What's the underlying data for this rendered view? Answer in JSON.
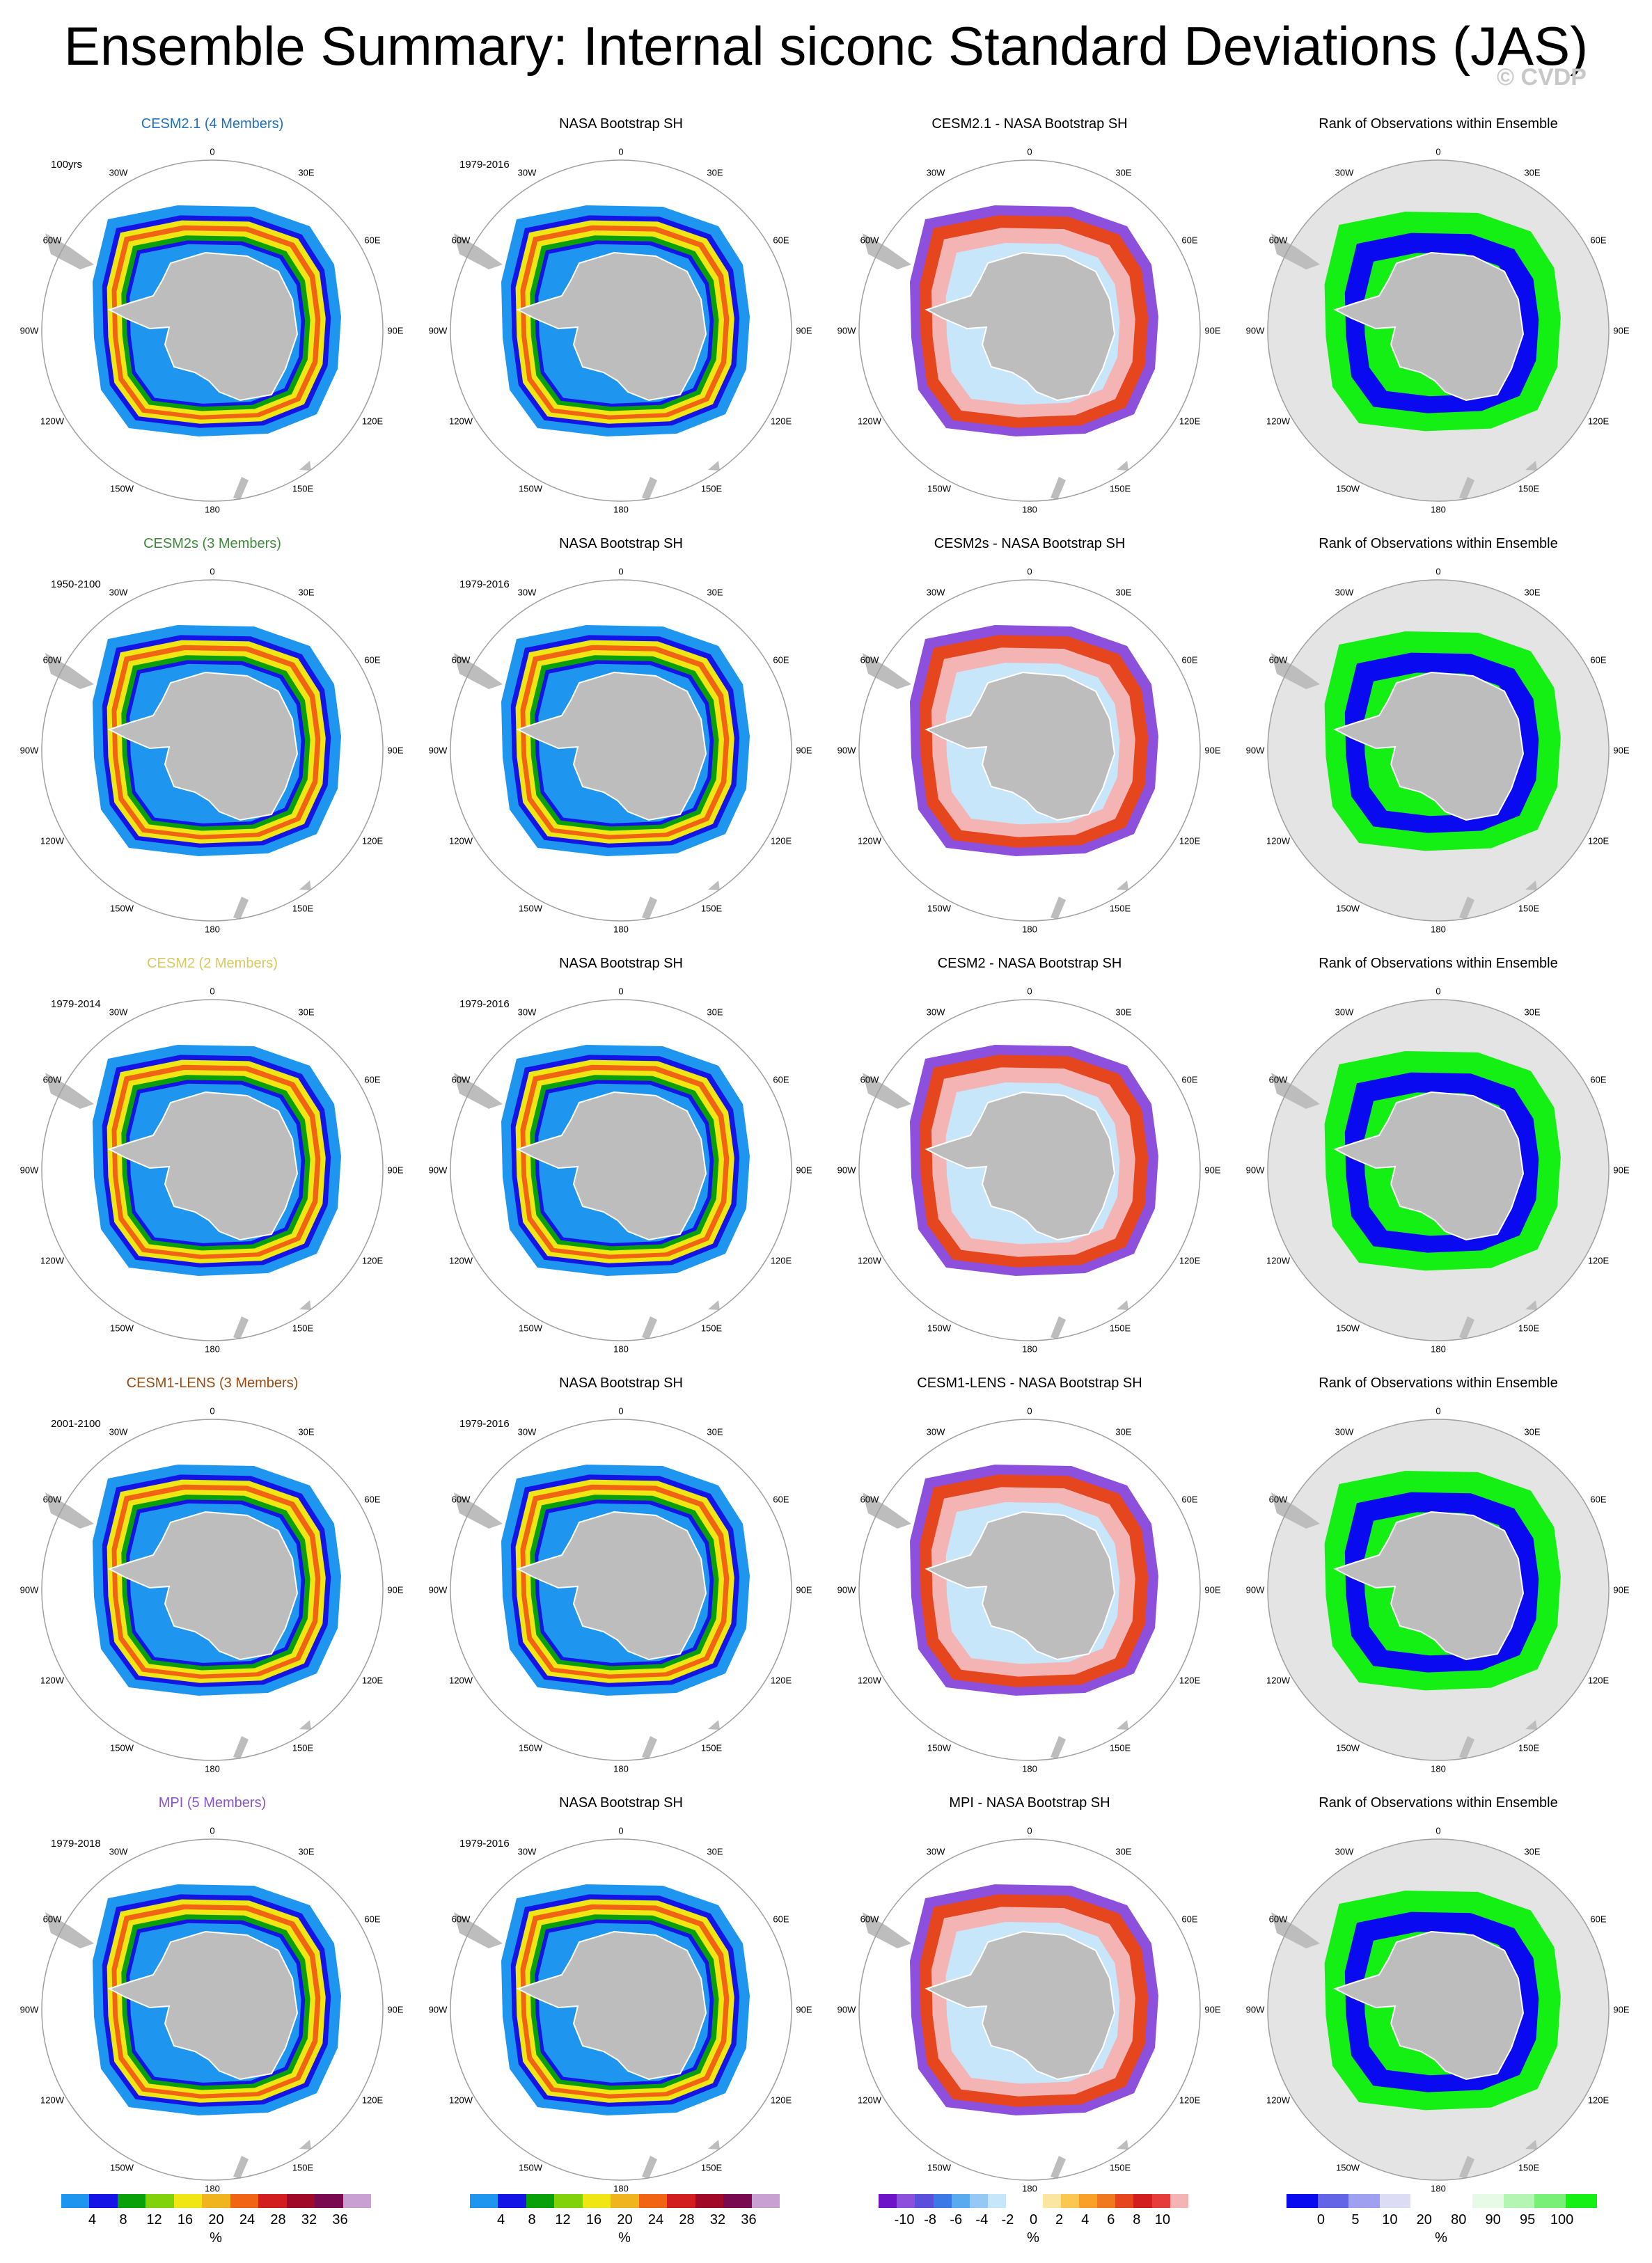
{
  "header": {
    "title": "Ensemble Summary: Internal siconc Standard Deviations (JAS)",
    "watermark": "© CVDP"
  },
  "colors": {
    "land": "#bdbdbd",
    "ring": "#a0a0a0",
    "rank_background": "#e4e4e4",
    "cesm21": "#1f6fbf",
    "cesm2s": "#3d8a3d",
    "cesm2": "#d8c860",
    "cesm1lens": "#9a4a10",
    "mpi": "#8a55cc"
  },
  "lon_labels": {
    "top": "0",
    "bottom": "180",
    "left": "90W",
    "right": "90E",
    "nw1": "30W",
    "nw2": "60W",
    "sw1": "120W",
    "sw2": "150W",
    "ne1": "30E",
    "ne2": "60E",
    "se1": "120E",
    "se2": "150E"
  },
  "rows": [
    {
      "model": {
        "title": "CESM2.1 (4 Members)",
        "color": "cesm21",
        "period": "100yrs"
      },
      "obs": {
        "title": "NASA Bootstrap SH",
        "period": "1979-2016"
      },
      "diff": {
        "title": "CESM2.1 - NASA Bootstrap SH"
      },
      "rank": {
        "title": "Rank of Observations within Ensemble"
      }
    },
    {
      "model": {
        "title": "CESM2s (3 Members)",
        "color": "cesm2s",
        "period": "1950-2100"
      },
      "obs": {
        "title": "NASA Bootstrap SH",
        "period": "1979-2016"
      },
      "diff": {
        "title": "CESM2s - NASA Bootstrap SH"
      },
      "rank": {
        "title": "Rank of Observations within Ensemble"
      }
    },
    {
      "model": {
        "title": "CESM2 (2 Members)",
        "color": "cesm2",
        "period": "1979-2014"
      },
      "obs": {
        "title": "NASA Bootstrap SH",
        "period": "1979-2016"
      },
      "diff": {
        "title": "CESM2 - NASA Bootstrap SH"
      },
      "rank": {
        "title": "Rank of Observations within Ensemble"
      }
    },
    {
      "model": {
        "title": "CESM1-LENS (3 Members)",
        "color": "cesm1lens",
        "period": "2001-2100"
      },
      "obs": {
        "title": "NASA Bootstrap SH",
        "period": "1979-2016"
      },
      "diff": {
        "title": "CESM1-LENS - NASA Bootstrap SH"
      },
      "rank": {
        "title": "Rank of Observations within Ensemble"
      }
    },
    {
      "model": {
        "title": "MPI (5 Members)",
        "color": "mpi",
        "period": "1979-2018"
      },
      "obs": {
        "title": "NASA Bootstrap SH",
        "period": "1979-2016"
      },
      "diff": {
        "title": "MPI - NASA Bootstrap SH"
      },
      "rank": {
        "title": "Rank of Observations within Ensemble"
      }
    }
  ],
  "colorbars": {
    "std": {
      "colors": [
        "#1e96f0",
        "#1414e6",
        "#0aa00a",
        "#82d20a",
        "#f0e614",
        "#f0b41e",
        "#f06414",
        "#d21e1e",
        "#a00a28",
        "#7a0a50",
        "#c8a0d2"
      ],
      "ticks": [
        "4",
        "8",
        "12",
        "16",
        "20",
        "24",
        "28",
        "32",
        "36"
      ],
      "unit": "%"
    },
    "diff": {
      "colors": [
        "#6e14c8",
        "#8c50dc",
        "#5a50dc",
        "#3c78e6",
        "#5aaaf0",
        "#96c8f5",
        "#c8e6fa",
        "#ffffff",
        "#ffffff",
        "#fae6a0",
        "#fac850",
        "#faa028",
        "#f0781e",
        "#e6461e",
        "#d21e1e",
        "#e63c3c",
        "#f5b4b4"
      ],
      "ticks": [
        "-10",
        "-8",
        "-6",
        "-4",
        "-2",
        "0",
        "2",
        "4",
        "6",
        "8",
        "10"
      ],
      "unit": "%"
    },
    "rank": {
      "colors": [
        "#0a0af0",
        "#6464e6",
        "#a0a0f0",
        "#dcdcf5",
        "#ffffff",
        "#ffffff",
        "#e6fae6",
        "#b4f5b4",
        "#78f078",
        "#14f014"
      ],
      "ticks": [
        "0",
        "5",
        "10",
        "20",
        "80",
        "90",
        "95",
        "100"
      ],
      "unit": "%"
    }
  }
}
